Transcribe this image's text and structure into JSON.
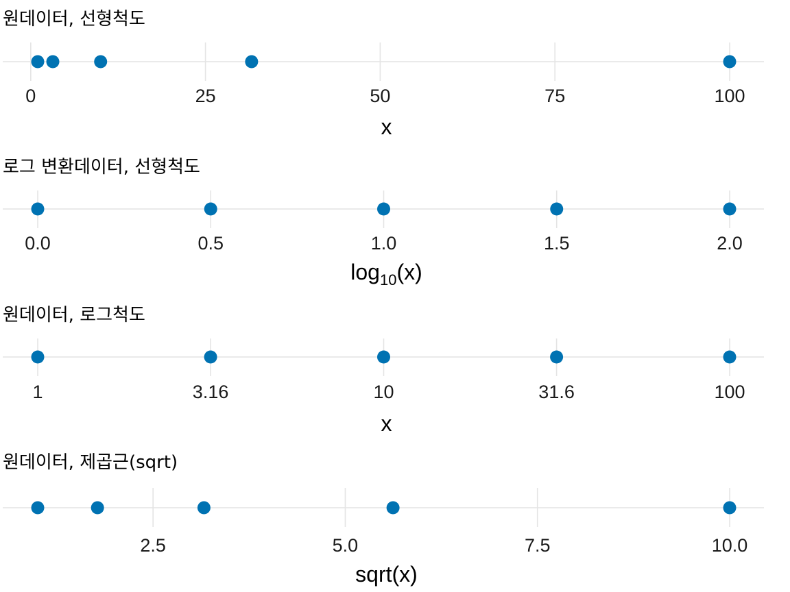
{
  "colors": {
    "point": "#0072b2",
    "grid": "#e4e4e4",
    "text": "#000000"
  },
  "chart_data": [
    {
      "type": "scatter",
      "title": "원데이터, 선형척도",
      "xlabel": "x",
      "xlabel_sub": "",
      "xlabel_suffix": "",
      "scale": "linear",
      "xlim": [
        1,
        100
      ],
      "ticks": [
        0,
        25,
        50,
        75,
        100
      ],
      "tick_labels": [
        "0",
        "25",
        "50",
        "75",
        "100"
      ],
      "x": [
        1,
        3.16,
        10,
        31.6,
        100
      ]
    },
    {
      "type": "scatter",
      "title": "로그 변환데이터, 선형척도",
      "xlabel": "log",
      "xlabel_sub": "10",
      "xlabel_suffix": "(x)",
      "scale": "linear",
      "xlim": [
        0,
        2
      ],
      "ticks": [
        0,
        0.5,
        1,
        1.5,
        2
      ],
      "tick_labels": [
        "0.0",
        "0.5",
        "1.0",
        "1.5",
        "2.0"
      ],
      "x": [
        0,
        0.5,
        1,
        1.5,
        2
      ]
    },
    {
      "type": "scatter",
      "title": "원데이터, 로그척도",
      "xlabel": "x",
      "xlabel_sub": "",
      "xlabel_suffix": "",
      "scale": "log10",
      "xlim": [
        1,
        100
      ],
      "ticks": [
        1,
        3.16,
        10,
        31.6,
        100
      ],
      "tick_labels": [
        "1",
        "3.16",
        "10",
        "31.6",
        "100"
      ],
      "x": [
        1,
        3.16,
        10,
        31.6,
        100
      ]
    },
    {
      "type": "scatter",
      "title": "원데이터, 제곱근(sqrt)",
      "xlabel": "sqrt(x)",
      "xlabel_sub": "",
      "xlabel_suffix": "",
      "scale": "sqrt",
      "xlim": [
        1,
        100
      ],
      "ticks": [
        6.25,
        25,
        56.25,
        100
      ],
      "tick_labels": [
        "2.5",
        "5.0",
        "7.5",
        "10.0"
      ],
      "x": [
        1,
        3.16,
        10,
        31.6,
        100
      ]
    }
  ]
}
